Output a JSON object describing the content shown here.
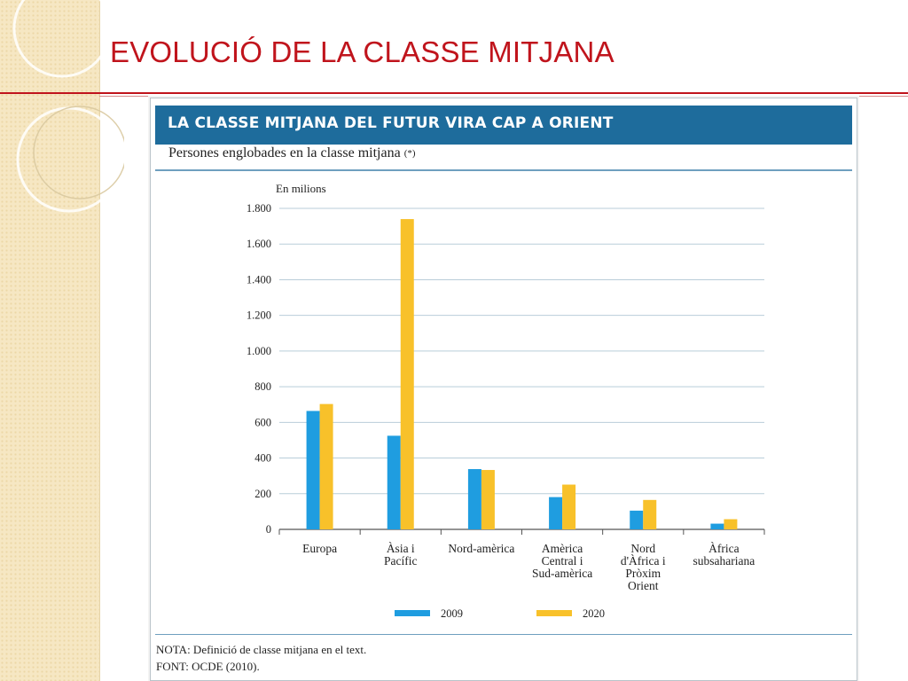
{
  "slide": {
    "title": "EVOLUCIÓ DE LA CLASSE MITJANA"
  },
  "figure": {
    "banner": "LA CLASSE MITJANA DEL FUTUR VIRA CAP A ORIENT",
    "subtitle": "Persones englobades en la classe mitjana",
    "subtitle_note": "(*)",
    "note": "NOTA: Definició de classe mitjana en el text.",
    "source": "FONT: OCDE (2010)."
  },
  "colors": {
    "banner": "#1e6c9c",
    "series_2009": "#1f9de0",
    "series_2020": "#f8c12a",
    "title_red": "#c0141c"
  },
  "chart_data": {
    "type": "bar",
    "title": "LA CLASSE MITJANA DEL FUTUR VIRA CAP A ORIENT",
    "subtitle": "Persones englobades en la classe mitjana (*)",
    "ylabel": "En milions",
    "xlabel": "",
    "ylim": [
      0,
      1800
    ],
    "yticks": [
      0,
      200,
      400,
      600,
      800,
      1000,
      1200,
      1400,
      1600,
      1800
    ],
    "ytick_labels": [
      "0",
      "200",
      "400",
      "600",
      "800",
      "1.000",
      "1.200",
      "1.400",
      "1.600",
      "1.800"
    ],
    "grid": true,
    "legend_position": "bottom",
    "categories": [
      [
        "Europa"
      ],
      [
        "Àsia i",
        "Pacífic"
      ],
      [
        "Nord-amèrica"
      ],
      [
        "Amèrica",
        "Central i",
        "Sud-amèrica"
      ],
      [
        "Nord",
        "d'Àfrica i",
        "Pròxim",
        "Orient"
      ],
      [
        "Àfrica",
        "subsahariana"
      ]
    ],
    "series": [
      {
        "name": "2009",
        "color": "#1f9de0",
        "values": [
          664,
          525,
          338,
          181,
          105,
          32
        ]
      },
      {
        "name": "2020",
        "color": "#f8c12a",
        "values": [
          703,
          1740,
          333,
          251,
          165,
          57
        ]
      }
    ]
  }
}
